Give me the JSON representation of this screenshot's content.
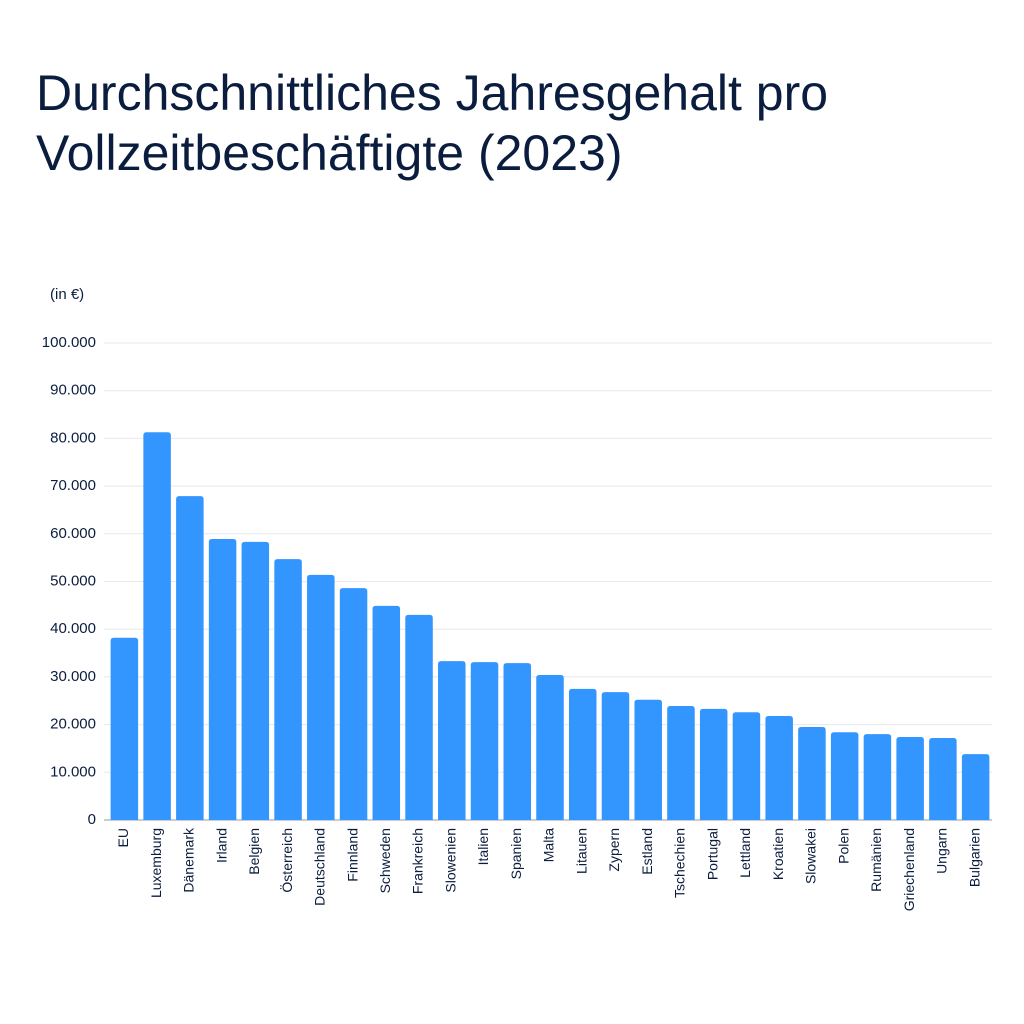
{
  "chart_data": {
    "type": "bar",
    "title": [
      "Durchschnittliches Jahresgehalt pro",
      "Vollzeitbeschäftigte (2023)"
    ],
    "y_label": "(in €)",
    "categories": [
      "EU",
      "Luxemburg",
      "Dänemark",
      "Irland",
      "Belgien",
      "Österreich",
      "Deutschland",
      "Finnland",
      "Schweden",
      "Frankreich",
      "Slowenien",
      "Italien",
      "Spanien",
      "Malta",
      "Litauen",
      "Zypern",
      "Estland",
      "Tschechien",
      "Portugal",
      "Lettland",
      "Kroatien",
      "Slowakei",
      "Polen",
      "Rumänien",
      "Griechenland",
      "Ungarn",
      "Bulgarien"
    ],
    "values": [
      38200,
      81300,
      67900,
      58900,
      58300,
      54700,
      51400,
      48600,
      44900,
      43000,
      33300,
      33100,
      32900,
      30400,
      27500,
      26800,
      25200,
      23900,
      23300,
      22600,
      21800,
      19500,
      18400,
      18000,
      17400,
      17200,
      13800
    ],
    "color": "#3396ff",
    "ylim": [
      0,
      100000
    ],
    "yticks": [
      0,
      {
        "value": 10000,
        "label": "10.000"
      },
      {
        "value": 20000,
        "label": "20.000"
      },
      {
        "value": 30000,
        "label": "30.000"
      },
      {
        "value": 40000,
        "label": "40.000"
      },
      {
        "value": 50000,
        "label": "50.000"
      },
      {
        "value": 60000,
        "label": "60.000"
      },
      {
        "value": 70000,
        "label": "70.000"
      },
      {
        "value": 80000,
        "label": "80.000"
      },
      {
        "value": 90000,
        "label": "90.000"
      },
      {
        "value": 100000,
        "label": "100.000"
      }
    ],
    "grid": true
  }
}
